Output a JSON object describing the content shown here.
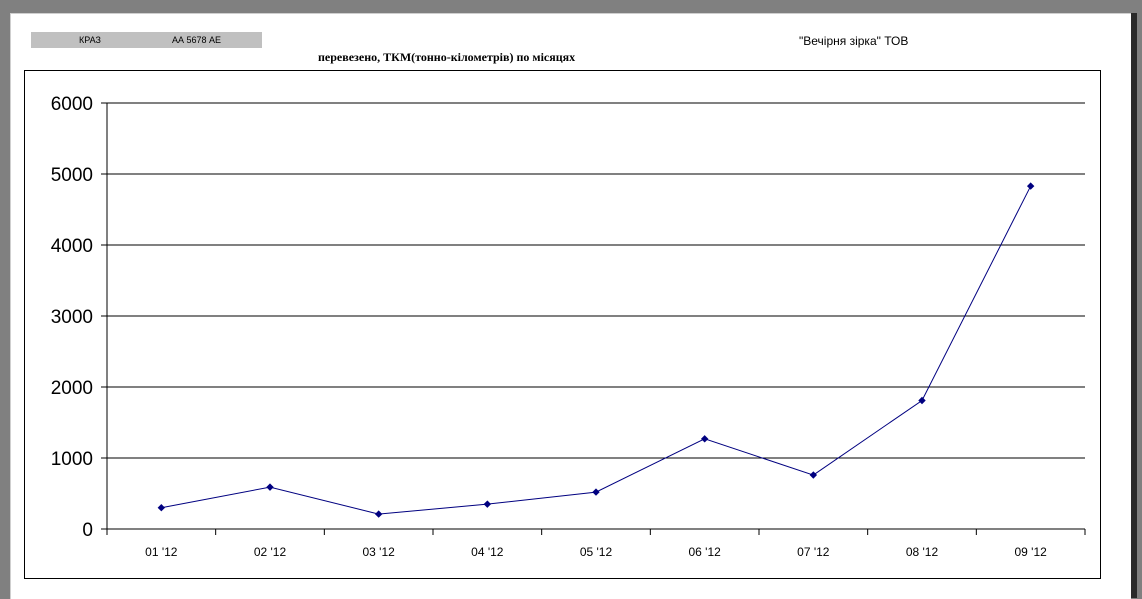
{
  "header": {
    "vehicle_type": "КРАЗ",
    "vehicle_plate": "АА 5678 АЕ",
    "company": "\"Вечірня зірка\" ТОВ"
  },
  "chart_data": {
    "type": "line",
    "title": "перевезено, ТКМ(тонно-кілометрів) по місяцях",
    "xlabel": "",
    "ylabel": "",
    "categories": [
      "01 '12",
      "02 '12",
      "03 '12",
      "04 '12",
      "05 '12",
      "06 '12",
      "07 '12",
      "08 '12",
      "09 '12"
    ],
    "values": [
      300,
      590,
      210,
      350,
      520,
      1270,
      760,
      1810,
      4830
    ],
    "ylim": [
      0,
      6000
    ],
    "yticks": [
      "0",
      "1000",
      "2000",
      "3000",
      "4000",
      "5000",
      "6000"
    ],
    "grid": "horizontal",
    "legend": "none",
    "line_color": "#000080",
    "marker_color": "#000080"
  }
}
